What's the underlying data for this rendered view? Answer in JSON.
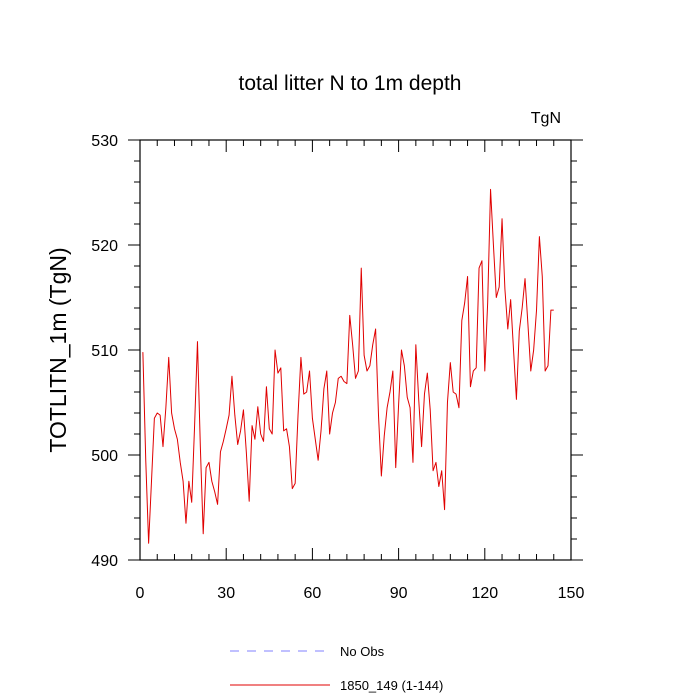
{
  "chart_data": {
    "type": "line",
    "title": "total litter N to 1m depth",
    "units_label": "TgN",
    "xlabel": "",
    "ylabel": "TOTLITN_1m  (TgN)",
    "xlim": [
      0,
      150
    ],
    "ylim": [
      490,
      530
    ],
    "x_ticks": [
      0,
      30,
      60,
      90,
      120,
      150
    ],
    "y_ticks": [
      490,
      500,
      510,
      520,
      530
    ],
    "grid": false,
    "legend_position": "bottom-center",
    "series": [
      {
        "name": "No Obs",
        "style": "dashed",
        "color": "#8080ff",
        "values": []
      },
      {
        "name": "1850_149 (1-144)",
        "style": "solid",
        "color": "#e00000",
        "x_start": 1,
        "values": [
          509.8,
          499.5,
          491.6,
          497.5,
          503.5,
          504.0,
          503.8,
          500.8,
          504.5,
          509.3,
          504.0,
          502.5,
          501.5,
          499.3,
          497.5,
          493.5,
          497.5,
          495.5,
          502.8,
          510.8,
          500.8,
          492.5,
          498.8,
          499.3,
          497.5,
          496.5,
          495.3,
          500.3,
          501.3,
          502.5,
          503.8,
          507.5,
          503.8,
          501.0,
          502.3,
          504.3,
          500.3,
          495.6,
          502.8,
          501.5,
          504.6,
          502.0,
          501.3,
          506.5,
          502.5,
          502.0,
          510.0,
          507.8,
          508.3,
          502.3,
          502.5,
          500.8,
          496.8,
          497.3,
          503.8,
          509.3,
          505.8,
          506.0,
          508.0,
          503.5,
          501.5,
          499.5,
          502.3,
          506.3,
          508.0,
          502.0,
          504.0,
          505.0,
          507.3,
          507.5,
          507.0,
          506.8,
          513.3,
          510.5,
          507.3,
          508.0,
          517.8,
          509.5,
          508.0,
          508.5,
          510.5,
          512.0,
          503.8,
          498.0,
          501.8,
          504.5,
          506.0,
          508.0,
          498.8,
          504.8,
          510.0,
          508.5,
          505.5,
          504.5,
          499.3,
          510.5,
          505.3,
          500.8,
          505.8,
          507.8,
          504.3,
          498.5,
          499.3,
          497.0,
          498.5,
          494.8,
          505.0,
          508.8,
          506.0,
          505.8,
          504.5,
          512.8,
          514.5,
          517.0,
          506.5,
          508.0,
          508.3,
          517.8,
          518.5,
          508.0,
          514.5,
          525.3,
          520.0,
          515.0,
          516.0,
          522.5,
          515.8,
          512.0,
          514.8,
          510.0,
          505.3,
          511.8,
          514.0,
          516.8,
          512.5,
          508.0,
          510.0,
          513.8,
          520.8,
          517.0,
          508.0,
          508.5,
          513.8,
          513.8
        ]
      }
    ]
  }
}
